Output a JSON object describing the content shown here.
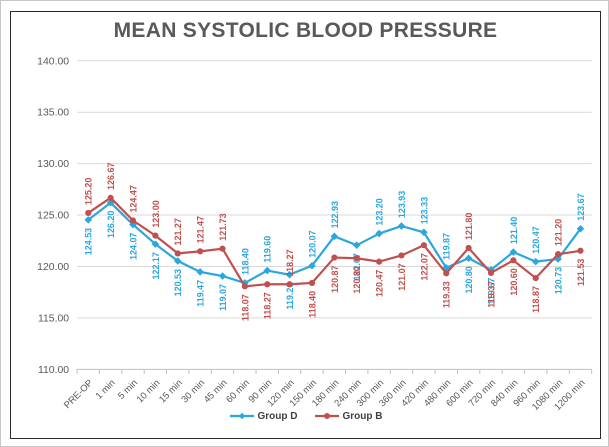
{
  "chart_data": {
    "type": "line",
    "title": "MEAN SYSTOLIC BLOOD PRESSURE",
    "categories": [
      "PRE-OP",
      "1 min",
      "5 min",
      "10 min",
      "15 min",
      "30 min",
      "45 min",
      "60 min",
      "90 min",
      "120 min",
      "150 min",
      "180 min",
      "240 min",
      "300 min",
      "360 min",
      "420 min",
      "480 min",
      "600 min",
      "720 min",
      "840 min",
      "960 min",
      "1080 min",
      "1200 min"
    ],
    "series": [
      {
        "name": "Group D",
        "color": "#2BA6DE",
        "marker": "diamond",
        "values": [
          124.53,
          126.2,
          124.07,
          122.17,
          120.53,
          119.47,
          119.07,
          118.4,
          119.6,
          119.2,
          120.07,
          122.93,
          122.07,
          123.2,
          123.93,
          123.33,
          119.87,
          120.8,
          119.67,
          121.4,
          120.47,
          120.73,
          123.67
        ],
        "label_side": [
          "below",
          "below",
          "below",
          "below",
          "below",
          "below",
          "below",
          "above",
          "above",
          "below",
          "above",
          "above",
          "below",
          "above",
          "above",
          "above",
          "above",
          "below",
          "below",
          "above",
          "above",
          "below",
          "above"
        ]
      },
      {
        "name": "Group B",
        "color": "#C0504D",
        "marker": "circle",
        "values": [
          125.2,
          126.67,
          124.47,
          123.0,
          121.27,
          121.47,
          121.73,
          118.07,
          118.27,
          118.27,
          118.4,
          120.87,
          120.8,
          120.47,
          121.07,
          122.07,
          119.33,
          121.8,
          119.37,
          120.6,
          118.87,
          121.2,
          121.53
        ],
        "label_side": [
          "above",
          "above",
          "above",
          "above",
          "above",
          "above",
          "above",
          "below",
          "below",
          "above",
          "below",
          "below",
          "below",
          "below",
          "below",
          "below",
          "below",
          "above",
          "below",
          "below",
          "below",
          "above",
          "below"
        ]
      }
    ],
    "y_axis": {
      "min": 110,
      "max": 140,
      "step": 5,
      "tick_labels": [
        "110.00",
        "115.00",
        "120.00",
        "125.00",
        "130.00",
        "135.00",
        "140.00"
      ]
    },
    "grid": true,
    "legend_position": "bottom",
    "label_decimals": 2,
    "grid_color": "#D9D9D9",
    "axis_color": "#BFBFBF",
    "tick_text_color": "#595959"
  }
}
